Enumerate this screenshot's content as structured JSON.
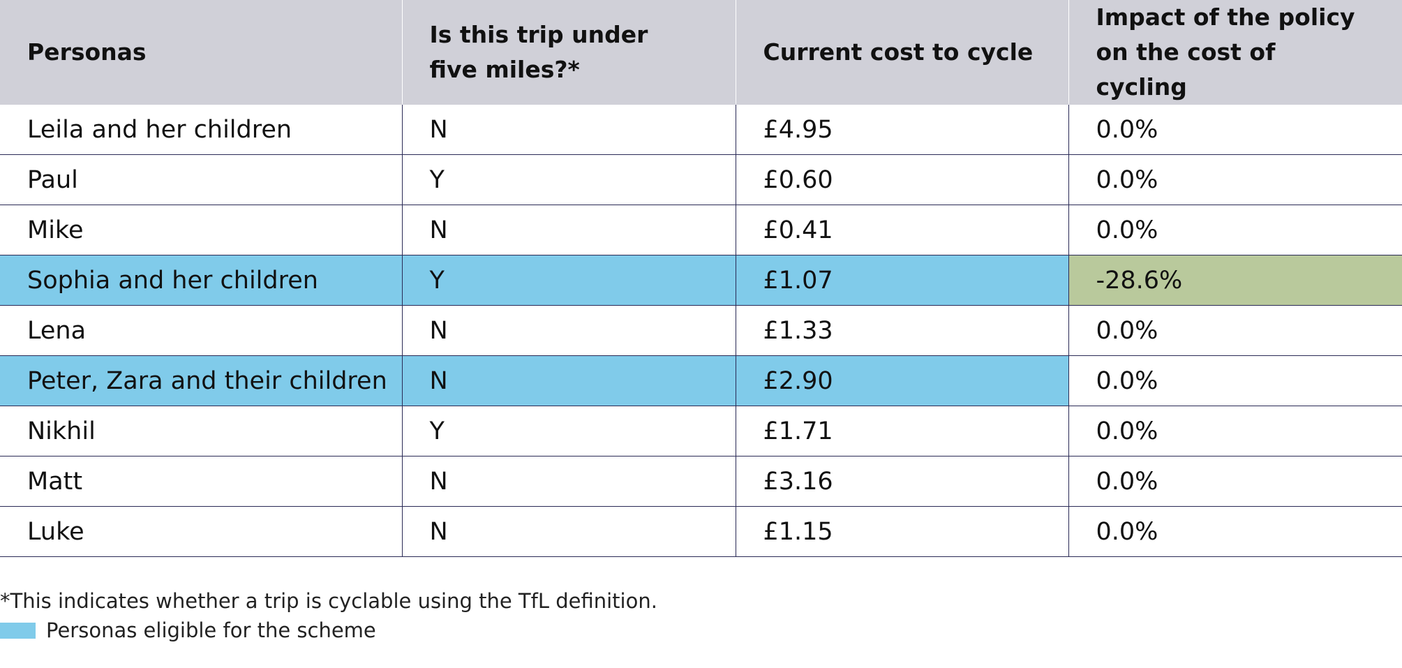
{
  "table": {
    "headers": [
      "Personas",
      "Is this trip under five miles?*",
      "Current cost to cycle",
      "Impact of the policy on the cost of cycling"
    ],
    "rows": [
      {
        "persona": "Leila and her children",
        "under_five": "N",
        "cost": "£4.95",
        "impact": "0.0%",
        "eligible": false,
        "impact_highlight": false
      },
      {
        "persona": "Paul",
        "under_five": "Y",
        "cost": "£0.60",
        "impact": "0.0%",
        "eligible": false,
        "impact_highlight": false
      },
      {
        "persona": "Mike",
        "under_five": "N",
        "cost": "£0.41",
        "impact": "0.0%",
        "eligible": false,
        "impact_highlight": false
      },
      {
        "persona": "Sophia and her children",
        "under_five": "Y",
        "cost": "£1.07",
        "impact": "-28.6%",
        "eligible": true,
        "impact_highlight": true
      },
      {
        "persona": "Lena",
        "under_five": "N",
        "cost": "£1.33",
        "impact": "0.0%",
        "eligible": false,
        "impact_highlight": false
      },
      {
        "persona": "Peter, Zara and their children",
        "under_five": "N",
        "cost": "£2.90",
        "impact": "0.0%",
        "eligible": true,
        "impact_highlight": false
      },
      {
        "persona": "Nikhil",
        "under_five": "Y",
        "cost": "£1.71",
        "impact": "0.0%",
        "eligible": false,
        "impact_highlight": false
      },
      {
        "persona": "Matt",
        "under_five": "N",
        "cost": "£3.16",
        "impact": "0.0%",
        "eligible": false,
        "impact_highlight": false
      },
      {
        "persona": "Luke",
        "under_five": "N",
        "cost": "£1.15",
        "impact": "0.0%",
        "eligible": false,
        "impact_highlight": false
      }
    ]
  },
  "footnote": "*This indicates whether a trip is cyclable using the TfL definition.",
  "legend": {
    "label": "Personas eligible for the scheme",
    "color": "#80cbea"
  },
  "colors": {
    "header_bg": "#d0d0d8",
    "eligible": "#80cbea",
    "impact_negative": "#b9c99c",
    "rule": "#2a2a55"
  }
}
